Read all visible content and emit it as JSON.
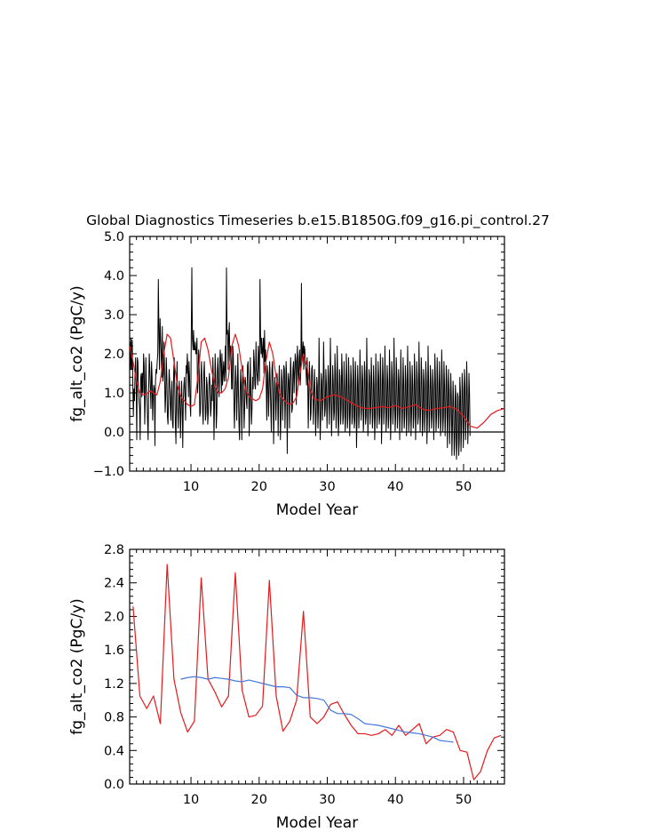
{
  "title": "Global Diagnostics Timeseries b.e15.B1850G.f09_g16.pi_control.27",
  "colors": {
    "monthly": "#000000",
    "annual": "#e41a1c",
    "smooth": "#4477dd",
    "zero": "#000000"
  },
  "chart_data": [
    {
      "type": "line",
      "title": "Global Diagnostics Timeseries b.e15.B1850G.f09_g16.pi_control.27",
      "xlabel": "Model Year",
      "ylabel": "fg_alt_co2 (PgC/y)",
      "xlim": [
        1,
        56
      ],
      "ylim": [
        -1.0,
        5.0
      ],
      "xticks": [
        10,
        20,
        30,
        40,
        50
      ],
      "xtick_labels": [
        "10",
        "20",
        "30",
        "40",
        "50"
      ],
      "yticks": [
        -1.0,
        0.0,
        1.0,
        2.0,
        3.0,
        4.0,
        5.0
      ],
      "ytick_labels": [
        "−1.0",
        "0.0",
        "1.0",
        "2.0",
        "3.0",
        "4.0",
        "5.0"
      ],
      "zero_line": true,
      "series": [
        {
          "role": "monthly",
          "color": "#000000",
          "x_start": 1.0417,
          "x_step": 0.08333,
          "values": [
            2.3,
            1.6,
            2.4,
            1.6,
            2.35,
            1.3,
            0.4,
            1.1,
            0.8,
            1.5,
            1.9,
            1.2,
            -0.2,
            1.9,
            1.8,
            1.1,
            0.8,
            0.6,
            -0.2,
            1.4,
            1.5,
            0.9,
            1.5,
            1.0,
            2.0,
            1.7,
            0.2,
            0.8,
            1.9,
            1.1,
            0.9,
            0.3,
            -0.2,
            1.1,
            2.0,
            1.6,
            1.1,
            0.6,
            1.8,
            1.4,
            0.3,
            0.9,
            1.2,
            1.1,
            -0.35,
            1.3,
            1.6,
            1.5,
            1.8,
            2.0,
            3.9,
            2.6,
            1.6,
            2.9,
            2.4,
            2.0,
            1.4,
            2.7,
            1.3,
            1.5,
            2.3,
            1.5,
            0.5,
            0.9,
            1.9,
            1.4,
            0.4,
            0.2,
            0.9,
            1.6,
            1.3,
            0.7,
            0.3,
            1.0,
            1.3,
            0.2,
            0.1,
            1.5,
            1.9,
            1.1,
            0.2,
            -0.3,
            1.1,
            1.8,
            0.6,
            0.1,
            0.7,
            1.3,
            0.8,
            -0.15,
            0.6,
            1.3,
            0.7,
            -0.4,
            0.8,
            1.2,
            1.4,
            0.9,
            0.3,
            1.7,
            1.5,
            2.0,
            1.6,
            0.9,
            1.8,
            1.4,
            0.7,
            0.4,
            2.5,
            4.2,
            2.4,
            2.1,
            2.6,
            2.1,
            2.1,
            2.3,
            2.0,
            2.0,
            2.4,
            1.0,
            1.3,
            2.1,
            1.6,
            0.4,
            0.5,
            1.4,
            1.8,
            1.2,
            0.5,
            0.2,
            1.5,
            1.8,
            1.0,
            0.3,
            0.5,
            1.4,
            1.2,
            0.2,
            0.5,
            1.2,
            1.5,
            1.2,
            0.4,
            0.6,
            1.2,
            0.8,
            1.9,
            1.3,
            -0.2,
            0.8,
            2.0,
            1.4,
            0.1,
            0.5,
            1.6,
            1.9,
            1.2,
            0.9,
            1.7,
            2.1,
            1.8,
            1.0,
            2.0,
            1.2,
            1.5,
            1.8,
            1.3,
            1.6,
            2.2,
            1.3,
            4.2,
            2.5,
            2.6,
            1.6,
            2.5,
            2.8,
            1.8,
            2.2,
            2.1,
            1.1,
            1.1,
            2.2,
            2.0,
            0.8,
            0.1,
            0.9,
            1.7,
            1.3,
            0.3,
            1.0,
            2.0,
            1.1,
            0.2,
            -0.2,
            1.0,
            1.6,
            1.1,
            -0.2,
            1.2,
            1.7,
            1.0,
            0.1,
            0.6,
            1.4,
            1.2,
            0.8,
            0.6,
            1.7,
            1.8,
            1.3,
            -0.1,
            0.9,
            1.9,
            1.0,
            0.2,
            0.6,
            1.4,
            1.1,
            2.1,
            1.8,
            1.2,
            1.1,
            2.3,
            1.6,
            1.4,
            1.2,
            2.2,
            1.9,
            1.3,
            3.9,
            2.5,
            2.0,
            2.4,
            1.9,
            2.1,
            2.4,
            1.5,
            2.6,
            1.8,
            2.1,
            1.2,
            0.3,
            1.7,
            1.5,
            0.4,
            1.0,
            1.8,
            1.3,
            0.6,
            0.0,
            1.6,
            1.8,
            1.2,
            -0.3,
            0.7,
            1.4,
            1.2,
            0.3,
            0.9,
            1.5,
            1.2,
            -0.1,
            1.1,
            1.7,
            0.9,
            -0.2,
            0.5,
            1.6,
            1.3,
            0.3,
            1.0,
            1.7,
            1.6,
            0.1,
            0.9,
            1.8,
            1.4,
            -0.55,
            0.9,
            1.5,
            1.3,
            0.1,
            1.2,
            1.9,
            1.4,
            0.5,
            0.6,
            1.6,
            1.8,
            1.0,
            1.5,
            2.0,
            1.8,
            0.7,
            1.8,
            2.2,
            1.5,
            1.2,
            1.9,
            2.1,
            1.2,
            1.7,
            3.8,
            1.8,
            2.0,
            2.3,
            1.6,
            2.2,
            2.1,
            1.7,
            1.6,
            1.2,
            1.9,
            1.4,
            0.1,
            1.0,
            1.8,
            1.3,
            0.3,
            0.5,
            1.6,
            1.7,
            1.0,
            0.2,
            0.9,
            1.6,
            1.0,
            -0.1,
            0.5,
            1.4,
            1.2,
            0.1,
            0.6,
            2.4,
            1.1,
            -0.2,
            0.4,
            1.5,
            1.3,
            0.3,
            0.8,
            2.3,
            1.4,
            0.4,
            0.6,
            1.6,
            1.2,
            0.1,
            0.7,
            1.7,
            1.4,
            0.2,
            0.9,
            2.4,
            1.2,
            -0.1,
            0.6,
            1.7,
            1.3,
            0.3,
            0.5,
            2.0,
            1.5,
            0.1,
            0.6,
            2.2,
            1.2,
            -0.1,
            0.3,
            1.6,
            1.4,
            0.2,
            0.6,
            2.0,
            1.5,
            0.2,
            0.4,
            1.8,
            1.2,
            0.0,
            0.4,
            2.0,
            1.4,
            0.1,
            0.4,
            1.9,
            1.2,
            -0.1,
            0.5,
            1.7,
            1.3,
            0.2,
            0.4,
            1.9,
            1.4,
            0.1,
            0.3,
            1.8,
            1.3,
            -0.4,
            0.4,
            1.7,
            1.2,
            0.1,
            0.5,
            2.1,
            1.4,
            0.3,
            0.6,
            1.7,
            1.3,
            0.0,
            0.4,
            1.8,
            1.5,
            0.2,
            0.4,
            2.4,
            1.2,
            -0.1,
            0.5,
            1.6,
            1.4,
            0.2,
            0.6,
            1.9,
            1.3,
            0.1,
            0.4,
            1.7,
            1.2,
            -0.2,
            0.4,
            2.0,
            1.3,
            0.1,
            0.5,
            1.8,
            1.4,
            0.2,
            0.4,
            2.0,
            1.3,
            -0.3,
            0.5,
            1.9,
            1.4,
            0.2,
            0.6,
            2.2,
            1.2,
            0.0,
            0.4,
            1.7,
            1.3,
            0.1,
            0.4,
            2.1,
            1.3,
            -0.2,
            0.5,
            1.8,
            1.4,
            0.2,
            0.6,
            2.4,
            1.2,
            0.0,
            0.4,
            1.9,
            1.4,
            0.1,
            0.5,
            1.6,
            1.3,
            -0.2,
            0.6,
            2.1,
            1.2,
            0.0,
            0.5,
            1.9,
            1.3,
            0.1,
            0.4,
            1.7,
            1.3,
            -0.1,
            0.6,
            2.2,
            1.2,
            0.0,
            0.3,
            1.8,
            1.4,
            -0.1,
            0.5,
            1.7,
            1.2,
            0.1,
            0.4,
            2.0,
            1.3,
            -0.2,
            0.5,
            1.8,
            1.4,
            0.2,
            0.4,
            2.3,
            1.3,
            0.0,
            0.6,
            1.9,
            1.4,
            -0.1,
            0.3,
            1.6,
            1.3,
            0.0,
            0.5,
            1.8,
            1.3,
            -0.3,
            0.4,
            2.2,
            1.2,
            0.0,
            0.5,
            1.7,
            1.3,
            0.1,
            0.4,
            1.6,
            1.2,
            -0.2,
            0.6,
            2.0,
            1.3,
            0.0,
            0.4,
            1.9,
            1.3,
            0.1,
            0.5,
            1.8,
            1.2,
            -0.1,
            0.3,
            2.1,
            1.4,
            0.0,
            0.4,
            1.8,
            1.2,
            -0.1,
            0.5,
            1.7,
            1.3,
            -0.4,
            0.4,
            1.6,
            1.1,
            -0.3,
            0.4,
            1.5,
            0.9,
            -0.6,
            0.2,
            1.3,
            0.8,
            -0.6,
            -0.2,
            1.2,
            0.9,
            -0.7,
            -0.3,
            1.0,
            0.9,
            -0.6,
            -0.2,
            1.4,
            1.0,
            -0.5,
            0.1,
            1.5,
            1.1,
            -0.4,
            0.2,
            1.6,
            1.2,
            -0.2,
            0.3,
            1.8,
            1.1,
            -0.3,
            0.3,
            1.5,
            1.0,
            -0.1
          ]
        },
        {
          "role": "annual-running",
          "color": "#e41a1c",
          "x": [
            1.0,
            1.5,
            2.0,
            2.5,
            3.0,
            3.5,
            4.0,
            4.5,
            5.0,
            5.5,
            6.0,
            6.5,
            7.0,
            7.5,
            8.0,
            8.5,
            9.0,
            9.5,
            10.0,
            10.5,
            11.0,
            11.5,
            12.0,
            12.5,
            13.0,
            13.5,
            14.0,
            14.5,
            15.0,
            15.5,
            16.0,
            16.5,
            17.0,
            17.5,
            18.0,
            18.5,
            19.0,
            19.5,
            20.0,
            20.5,
            21.0,
            21.5,
            22.0,
            22.5,
            23.0,
            23.5,
            24.0,
            24.5,
            25.0,
            25.5,
            26.0,
            26.5,
            27.0,
            27.5,
            28.0,
            29.0,
            30.0,
            31.0,
            32.0,
            33.0,
            34.0,
            35.0,
            36.0,
            37.0,
            38.0,
            39.0,
            40.0,
            41.0,
            42.0,
            43.0,
            44.0,
            45.0,
            46.0,
            47.0,
            48.0,
            49.0,
            50.0,
            51.0,
            52.0,
            53.0,
            54.0,
            55.0,
            56.0
          ],
          "values": [
            2.2,
            1.8,
            1.3,
            1.0,
            0.95,
            0.97,
            1.05,
            1.0,
            0.95,
            1.3,
            2.0,
            2.5,
            2.4,
            1.8,
            1.2,
            0.9,
            0.8,
            0.7,
            0.65,
            0.7,
            1.4,
            2.3,
            2.4,
            2.1,
            1.6,
            1.2,
            1.0,
            1.0,
            1.1,
            1.4,
            2.2,
            2.5,
            2.2,
            1.6,
            1.1,
            0.9,
            0.85,
            0.8,
            0.85,
            1.1,
            1.8,
            2.3,
            2.0,
            1.4,
            1.0,
            0.85,
            0.75,
            0.7,
            0.75,
            0.9,
            1.5,
            2.0,
            1.7,
            1.1,
            0.85,
            0.8,
            0.9,
            0.95,
            0.9,
            0.8,
            0.7,
            0.62,
            0.6,
            0.62,
            0.65,
            0.62,
            0.68,
            0.6,
            0.65,
            0.7,
            0.58,
            0.55,
            0.6,
            0.62,
            0.65,
            0.58,
            0.4,
            0.15,
            0.1,
            0.25,
            0.45,
            0.55,
            0.6
          ]
        }
      ]
    },
    {
      "type": "line",
      "xlabel": "Model Year",
      "ylabel": "fg_alt_co2 (PgC/y)",
      "xlim": [
        1,
        56
      ],
      "ylim": [
        0.0,
        2.8
      ],
      "xticks": [
        10,
        20,
        30,
        40,
        50
      ],
      "xtick_labels": [
        "10",
        "20",
        "30",
        "40",
        "50"
      ],
      "yticks": [
        0.0,
        0.4,
        0.8,
        1.2,
        1.6,
        2.0,
        2.4,
        2.8
      ],
      "ytick_labels": [
        "0.0",
        "0.4",
        "0.8",
        "1.2",
        "1.6",
        "2.0",
        "2.4",
        "2.8"
      ],
      "series": [
        {
          "role": "annual-mean",
          "color": "#e41a1c",
          "x": [
            1.5,
            2.5,
            3.5,
            4.5,
            5.5,
            6.5,
            7.5,
            8.5,
            9.5,
            10.5,
            11.5,
            12.5,
            13.5,
            14.5,
            15.5,
            16.5,
            17.5,
            18.5,
            19.5,
            20.5,
            21.5,
            22.5,
            23.5,
            24.5,
            25.5,
            26.5,
            27.5,
            28.5,
            29.5,
            30.5,
            31.5,
            32.5,
            33.5,
            34.5,
            35.5,
            36.5,
            37.5,
            38.5,
            39.5,
            40.5,
            41.5,
            42.5,
            43.5,
            44.5,
            45.5,
            46.5,
            47.5,
            48.5,
            49.5,
            50.5,
            51.5,
            52.5,
            53.5,
            54.5,
            55.5
          ],
          "values": [
            2.12,
            1.05,
            0.9,
            1.05,
            0.72,
            2.62,
            1.25,
            0.85,
            0.62,
            0.75,
            2.46,
            1.25,
            1.1,
            0.92,
            1.05,
            2.52,
            1.12,
            0.8,
            0.82,
            0.93,
            2.43,
            1.05,
            0.63,
            0.75,
            1.0,
            2.06,
            0.8,
            0.72,
            0.8,
            0.95,
            0.98,
            0.83,
            0.7,
            0.6,
            0.6,
            0.58,
            0.6,
            0.65,
            0.58,
            0.7,
            0.58,
            0.65,
            0.72,
            0.48,
            0.56,
            0.58,
            0.65,
            0.62,
            0.4,
            0.38,
            0.05,
            0.15,
            0.4,
            0.55,
            0.58
          ]
        },
        {
          "role": "smoothed",
          "color": "#4477dd",
          "x": [
            8.5,
            9.5,
            10.5,
            11.5,
            12.5,
            13.5,
            14.5,
            15.5,
            16.5,
            17.5,
            18.5,
            19.5,
            20.5,
            21.5,
            22.5,
            23.5,
            24.5,
            25.5,
            26.5,
            27.5,
            28.5,
            29.5,
            30.5,
            31.5,
            32.5,
            33.5,
            34.5,
            35.5,
            36.5,
            37.5,
            38.5,
            39.5,
            40.5,
            41.5,
            42.5,
            43.5,
            44.5,
            45.5,
            46.5,
            47.5,
            48.5
          ],
          "values": [
            1.25,
            1.27,
            1.28,
            1.27,
            1.25,
            1.27,
            1.26,
            1.25,
            1.23,
            1.22,
            1.24,
            1.22,
            1.2,
            1.18,
            1.16,
            1.16,
            1.15,
            1.06,
            1.03,
            1.03,
            1.02,
            1.0,
            0.88,
            0.84,
            0.84,
            0.83,
            0.78,
            0.72,
            0.71,
            0.7,
            0.68,
            0.66,
            0.64,
            0.62,
            0.61,
            0.6,
            0.58,
            0.56,
            0.52,
            0.51,
            0.5
          ]
        }
      ]
    }
  ]
}
